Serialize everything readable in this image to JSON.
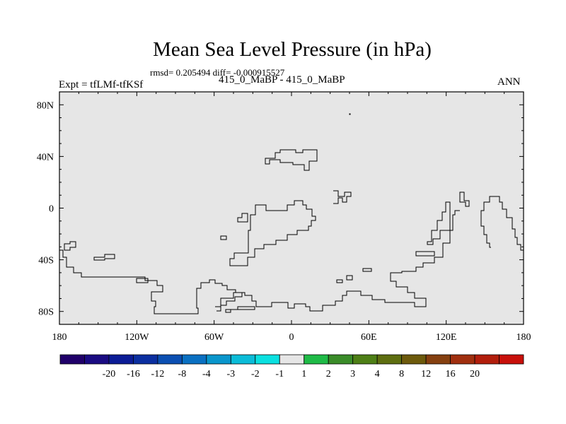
{
  "chart_data": {
    "type": "contour-map",
    "title": "Mean Sea Level Pressure (in hPa)",
    "stats_line": "rmsd= 0.205494 diff= -0.000915527",
    "subtitle": "415_0_MaBP - 415_0_MaBP",
    "left_label": "Expt = tfLMf-tfKSf",
    "right_label": "ANN",
    "x_axis": {
      "range": [
        -180,
        180
      ],
      "ticks": [
        {
          "value": -180,
          "label": "180"
        },
        {
          "value": -120,
          "label": "120W"
        },
        {
          "value": -60,
          "label": "60W"
        },
        {
          "value": 0,
          "label": "0"
        },
        {
          "value": 60,
          "label": "60E"
        },
        {
          "value": 120,
          "label": "120E"
        },
        {
          "value": 180,
          "label": "180"
        }
      ]
    },
    "y_axis": {
      "range": [
        -90,
        90
      ],
      "ticks": [
        {
          "value": 80,
          "label": "80N"
        },
        {
          "value": 40,
          "label": "40N"
        },
        {
          "value": 0,
          "label": "0"
        },
        {
          "value": -40,
          "label": "40S"
        },
        {
          "value": -80,
          "label": "80S"
        }
      ]
    },
    "field_fill": "#e6e6e6",
    "colorbar": {
      "colors": [
        "#20006a",
        "#1a0b82",
        "#0c1c96",
        "#0b2fa0",
        "#0b4fb2",
        "#0a70c2",
        "#0996cc",
        "#0bbcd8",
        "#0ae0e0",
        "#e6e6e6",
        "#1fbb47",
        "#3a8c29",
        "#4e7f16",
        "#5e6e10",
        "#6d5a0c",
        "#854010",
        "#a02f0f",
        "#b21e0c",
        "#c8100a"
      ],
      "labels": [
        "-20",
        "-16",
        "-12",
        "-8",
        "-4",
        "-3",
        "-2",
        "-1",
        "1",
        "2",
        "3",
        "4",
        "8",
        "12",
        "16",
        "20"
      ]
    },
    "contour_level": 0
  }
}
